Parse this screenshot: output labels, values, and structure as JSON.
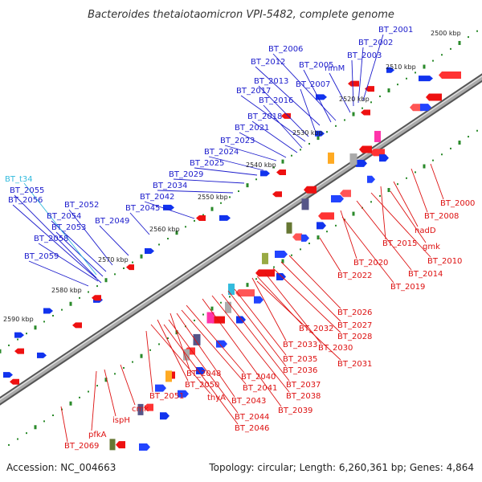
{
  "title": "Bacteroides thetaiotaomicron VPI-5482, complete genome",
  "footer": {
    "accession": "Accession: NC_004663",
    "topology": "Topology: circular; Length: 6,260,361 bp; Genes: 4,864"
  },
  "colors": {
    "forward_label": "#1c1ccc",
    "reverse_label": "#dd1111",
    "rna_label": "#33bbdd",
    "forward_gene": "#1133ee",
    "reverse_gene": "#ee1111",
    "backbone": "#888888",
    "tick_dots": "#2a8a2a"
  },
  "ticks": [
    "2500 kbp",
    "2510 kbp",
    "2520 kbp",
    "2530 kbp",
    "2540 kbp",
    "2550 kbp",
    "2560 kbp",
    "2570 kbp",
    "2580 kbp",
    "2590 kbp"
  ],
  "forward_labels": [
    "BT_2001",
    "BT_2002",
    "BT_2003",
    "rimM",
    "BT_2006",
    "BT_2005",
    "BT_2012",
    "BT_2007",
    "BT_2013",
    "BT_2017",
    "BT_2016",
    "BT_2018",
    "BT_2021",
    "BT_2023",
    "BT_2024",
    "BT_2025",
    "BT_2029",
    "BT_2034",
    "BT_2042",
    "BT_2045",
    "BT_2049",
    "BT_2052",
    "BT_2054",
    "BT_2053",
    "BT_2058",
    "BT_2059",
    "BT_2055",
    "BT_2056"
  ],
  "rna_labels": [
    "BT_t34"
  ],
  "reverse_labels": [
    "BT_2000",
    "BT_2008",
    "nadD",
    "BT_2015",
    "gmk",
    "BT_2010",
    "BT_2014",
    "BT_2020",
    "BT_2019",
    "BT_2022",
    "BT_2026",
    "BT_2027",
    "BT_2028",
    "BT_2030",
    "BT_2032",
    "BT_2033",
    "BT_2031",
    "BT_2035",
    "BT_2036",
    "BT_2037",
    "BT_2038",
    "BT_2039",
    "BT_2040",
    "BT_2041",
    "BT_2043",
    "BT_2044",
    "BT_2046",
    "BT_2048",
    "BT_2050",
    "thyA",
    "BT_2051",
    "cmk",
    "ispH",
    "pfkA",
    "BT_2069"
  ]
}
